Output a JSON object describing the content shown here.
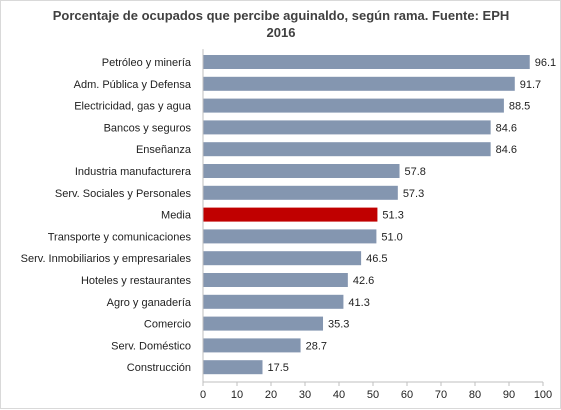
{
  "chart_data": {
    "type": "bar",
    "orientation": "horizontal",
    "title": "Porcentaje de ocupados que percibe aguinaldo, según rama. Fuente: EPH 2016",
    "categories": [
      "Petróleo y minería",
      "Adm. Pública y Defensa",
      "Electricidad, gas y agua",
      "Bancos y seguros",
      "Enseñanza",
      "Industria manufacturera",
      "Serv. Sociales y Personales",
      "Media",
      "Transporte y comunicaciones",
      "Serv. Inmobiliarios y empresariales",
      "Hoteles y restaurantes",
      "Agro y ganadería",
      "Comercio",
      "Serv. Doméstico",
      "Construcción"
    ],
    "values": [
      96.1,
      91.7,
      88.5,
      84.6,
      84.6,
      57.8,
      57.3,
      51.3,
      51.0,
      46.5,
      42.6,
      41.3,
      35.3,
      28.7,
      17.5
    ],
    "value_labels": [
      "96.1",
      "91.7",
      "88.5",
      "84.6",
      "84.6",
      "57.8",
      "57.3",
      "51.3",
      "51.0",
      "46.5",
      "42.6",
      "41.3",
      "35.3",
      "28.7",
      "17.5"
    ],
    "highlight_category": "Media",
    "xlim": [
      0,
      100
    ],
    "xticks": [
      0,
      10,
      20,
      30,
      40,
      50,
      60,
      70,
      80,
      90,
      100
    ],
    "grid": false,
    "legend": "none",
    "colors": {
      "bar": "#8496b0",
      "highlight": "#c00000",
      "axis": "#bfbfbf"
    }
  }
}
